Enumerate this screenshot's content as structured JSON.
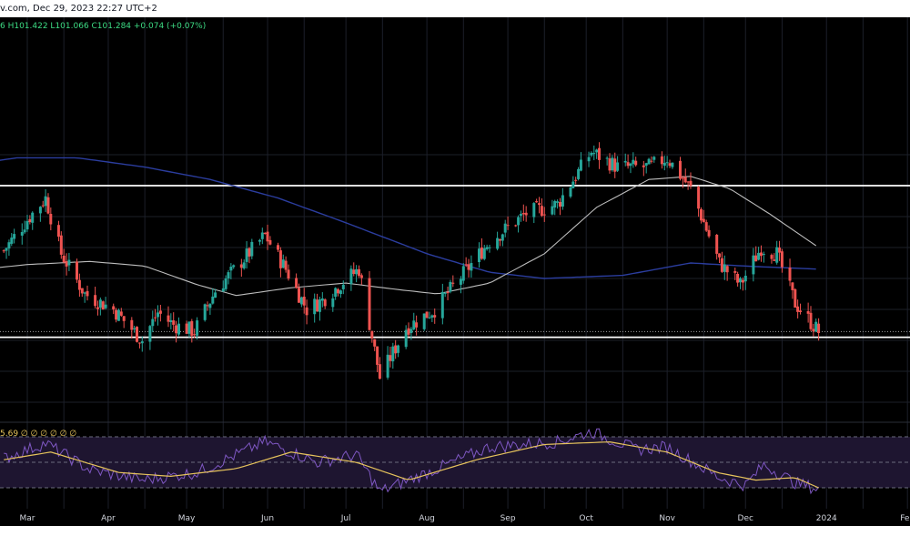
{
  "header": {
    "source_text": "v.com, Dec 29, 2023 22:27 UTC+2",
    "ohlc_text": "6  H101.422  L101.066  C101.284  +0.074 (+0.07%)"
  },
  "indicator": {
    "value_text": "5.69  ∅ ∅ ∅ ∅ ∅ ∅"
  },
  "colors": {
    "background": "#000000",
    "up": "#26a69a",
    "down": "#ef5350",
    "ma_slow": "#2b3d9e",
    "ma_fast": "#bdbdbd",
    "rsi_line": "#7e57c2",
    "rsi_ma": "#e6c35c",
    "level_lines": "#ffffff",
    "header_green": "#3ddc84"
  },
  "chart_data": {
    "type": "candlestick",
    "x_axis": {
      "tick_labels": [
        "Mar",
        "Apr",
        "May",
        "Jun",
        "Jul",
        "Aug",
        "Sep",
        "Oct",
        "Nov",
        "Dec",
        "2024",
        "Feb"
      ]
    },
    "candles": {
      "anchors": [
        [
          "2023-02-20",
          103.9
        ],
        [
          "2023-03-01",
          104.9
        ],
        [
          "2023-03-08",
          105.6
        ],
        [
          "2023-03-14",
          103.8
        ],
        [
          "2023-03-23",
          102.5
        ],
        [
          "2023-04-03",
          102.0
        ],
        [
          "2023-04-14",
          101.0
        ],
        [
          "2023-04-20",
          101.9
        ],
        [
          "2023-04-26",
          101.5
        ],
        [
          "2023-05-04",
          101.3
        ],
        [
          "2023-05-12",
          102.6
        ],
        [
          "2023-05-31",
          104.4
        ],
        [
          "2023-06-08",
          103.3
        ],
        [
          "2023-06-16",
          102.0
        ],
        [
          "2023-06-22",
          102.3
        ],
        [
          "2023-06-30",
          102.9
        ],
        [
          "2023-07-06",
          103.3
        ],
        [
          "2023-07-14",
          99.8
        ],
        [
          "2023-07-24",
          101.4
        ],
        [
          "2023-08-04",
          102.0
        ],
        [
          "2023-08-25",
          104.2
        ],
        [
          "2023-09-08",
          105.1
        ],
        [
          "2023-09-20",
          105.4
        ],
        [
          "2023-10-03",
          107.1
        ],
        [
          "2023-10-13",
          106.6
        ],
        [
          "2023-10-25",
          106.6
        ],
        [
          "2023-11-01",
          106.9
        ],
        [
          "2023-11-10",
          105.9
        ],
        [
          "2023-11-21",
          103.5
        ],
        [
          "2023-11-29",
          102.8
        ],
        [
          "2023-12-07",
          104.0
        ],
        [
          "2023-12-13",
          103.8
        ],
        [
          "2023-12-20",
          102.2
        ],
        [
          "2023-12-29",
          101.28
        ]
      ]
    },
    "moving_average_slow": [
      [
        "2023-02-01",
        106.6
      ],
      [
        "2023-02-25",
        106.9
      ],
      [
        "2023-03-20",
        106.9
      ],
      [
        "2023-04-15",
        106.6
      ],
      [
        "2023-05-10",
        106.2
      ],
      [
        "2023-06-05",
        105.6
      ],
      [
        "2023-07-01",
        104.8
      ],
      [
        "2023-08-01",
        103.8
      ],
      [
        "2023-08-25",
        103.2
      ],
      [
        "2023-09-15",
        103.0
      ],
      [
        "2023-10-15",
        103.1
      ],
      [
        "2023-11-10",
        103.5
      ],
      [
        "2023-12-01",
        103.4
      ],
      [
        "2023-12-29",
        103.3
      ]
    ],
    "moving_average_fast": [
      [
        "2023-02-01",
        103.2
      ],
      [
        "2023-03-01",
        103.45
      ],
      [
        "2023-03-25",
        103.55
      ],
      [
        "2023-04-15",
        103.4
      ],
      [
        "2023-05-05",
        102.8
      ],
      [
        "2023-05-20",
        102.45
      ],
      [
        "2023-06-10",
        102.7
      ],
      [
        "2023-07-01",
        102.85
      ],
      [
        "2023-07-20",
        102.65
      ],
      [
        "2023-08-05",
        102.5
      ],
      [
        "2023-08-25",
        102.85
      ],
      [
        "2023-09-15",
        103.8
      ],
      [
        "2023-10-05",
        105.3
      ],
      [
        "2023-10-25",
        106.2
      ],
      [
        "2023-11-10",
        106.3
      ],
      [
        "2023-11-25",
        105.9
      ],
      [
        "2023-12-10",
        105.1
      ],
      [
        "2023-12-29",
        104.0
      ]
    ],
    "horizontal_levels": [
      106.0,
      101.1
    ],
    "last_price": 101.284,
    "rsi": {
      "upper_band": 70,
      "lower_band": 30,
      "mid_band": 50,
      "anchors": [
        [
          "2023-02-20",
          53
        ],
        [
          "2023-03-08",
          65
        ],
        [
          "2023-03-25",
          44
        ],
        [
          "2023-04-14",
          36
        ],
        [
          "2023-05-05",
          42
        ],
        [
          "2023-05-31",
          66
        ],
        [
          "2023-06-20",
          50
        ],
        [
          "2023-07-05",
          56
        ],
        [
          "2023-07-14",
          27
        ],
        [
          "2023-08-05",
          45
        ],
        [
          "2023-08-25",
          62
        ],
        [
          "2023-09-20",
          66
        ],
        [
          "2023-10-03",
          74
        ],
        [
          "2023-10-20",
          60
        ],
        [
          "2023-11-01",
          62
        ],
        [
          "2023-11-21",
          38
        ],
        [
          "2023-12-01",
          32
        ],
        [
          "2023-12-08",
          48
        ],
        [
          "2023-12-20",
          34
        ],
        [
          "2023-12-29",
          29
        ]
      ],
      "ma_anchors": [
        [
          "2023-02-20",
          52
        ],
        [
          "2023-03-10",
          58
        ],
        [
          "2023-04-05",
          42
        ],
        [
          "2023-04-25",
          39
        ],
        [
          "2023-05-20",
          45
        ],
        [
          "2023-06-10",
          58
        ],
        [
          "2023-07-05",
          50
        ],
        [
          "2023-07-25",
          36
        ],
        [
          "2023-08-20",
          52
        ],
        [
          "2023-09-15",
          64
        ],
        [
          "2023-10-10",
          66
        ],
        [
          "2023-11-01",
          58
        ],
        [
          "2023-11-20",
          42
        ],
        [
          "2023-12-05",
          36
        ],
        [
          "2023-12-20",
          38
        ],
        [
          "2023-12-29",
          30
        ]
      ]
    }
  }
}
